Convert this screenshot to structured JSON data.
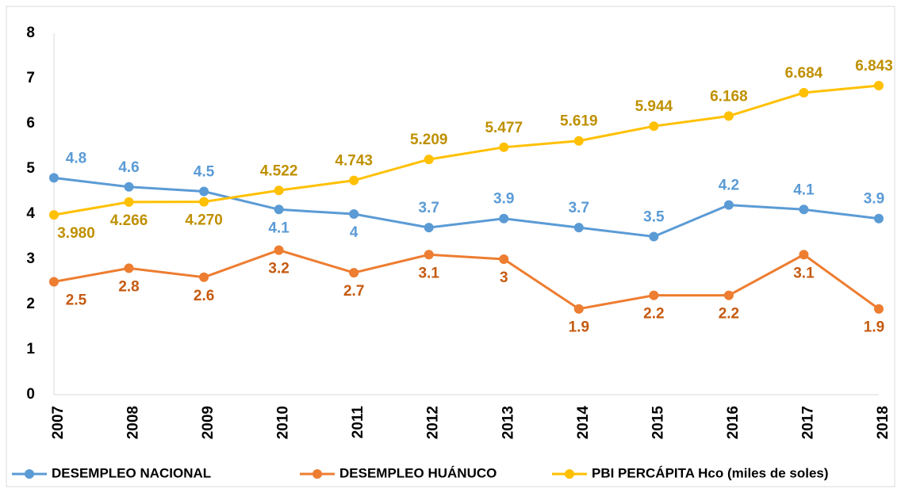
{
  "chart_data": {
    "type": "line",
    "categories": [
      "2007",
      "2008",
      "2009",
      "2010",
      "2011",
      "2012",
      "2013",
      "2014",
      "2015",
      "2016",
      "2017",
      "2018"
    ],
    "ylim": [
      0,
      8
    ],
    "yticks": [
      0,
      1,
      2,
      3,
      4,
      5,
      6,
      7,
      8
    ],
    "grid": false,
    "legend": "bottom",
    "series": [
      {
        "name": "DESEMPLEO NACIONAL",
        "color": "#5b9bd5",
        "label_color": "#5b9bd5",
        "values": [
          4.8,
          4.6,
          4.5,
          4.1,
          4,
          3.7,
          3.9,
          3.7,
          3.5,
          4.2,
          4.1,
          3.9
        ]
      },
      {
        "name": "DESEMPLEO HUÁNUCO",
        "color": "#ed7d31",
        "label_color": "#c55a11",
        "values": [
          2.5,
          2.8,
          2.6,
          3.2,
          2.7,
          3.1,
          3,
          1.9,
          2.2,
          2.2,
          3.1,
          1.9
        ]
      },
      {
        "name": "PBI PERCÁPITA Hco (miles de soles)",
        "color": "#ffc000",
        "label_color": "#bf9000",
        "values": [
          3.98,
          4.266,
          4.27,
          4.522,
          4.743,
          5.209,
          5.477,
          5.619,
          5.944,
          6.168,
          6.684,
          6.843
        ],
        "value_labels": [
          "3.980",
          "4.266",
          "4.270",
          "4.522",
          "4.743",
          "5.209",
          "5.477",
          "5.619",
          "5.944",
          "6.168",
          "6.684",
          "6.843"
        ]
      }
    ]
  }
}
